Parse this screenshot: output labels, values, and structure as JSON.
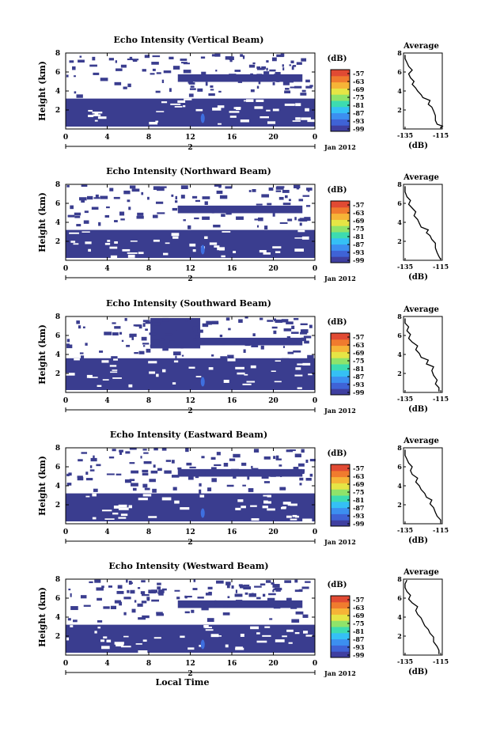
{
  "chart_data": [
    {
      "type": "heatmap",
      "title": "Echo Intensity (Vertical Beam)",
      "ylabel": "Height (km)",
      "yticks": [
        "2",
        "4",
        "6",
        "8"
      ],
      "ylim": [
        0,
        8
      ],
      "xticks": [
        "0",
        "4",
        "8",
        "12",
        "16",
        "20",
        "0"
      ],
      "xlim": [
        0,
        24
      ],
      "date_label": "2",
      "date_suffix": "Jan 2012",
      "colorbar": {
        "unit": "(dB)",
        "ticks": [
          "-57",
          "-63",
          "-69",
          "-75",
          "-81",
          "-87",
          "-93",
          "-99"
        ]
      },
      "average_profile": {
        "title": "Average",
        "xlabel": "(dB)",
        "xticks": [
          "-135",
          "-115"
        ],
        "yticks": [
          "2",
          "4",
          "6",
          "8"
        ],
        "points": [
          [
            -115,
            0.1
          ],
          [
            -114,
            0.3
          ],
          [
            -117,
            0.5
          ],
          [
            -118,
            0.9
          ],
          [
            -118,
            1.4
          ],
          [
            -119,
            1.9
          ],
          [
            -120,
            2.3
          ],
          [
            -122,
            2.6
          ],
          [
            -121,
            3.0
          ],
          [
            -125,
            3.3
          ],
          [
            -126,
            3.6
          ],
          [
            -128,
            4.0
          ],
          [
            -129,
            4.3
          ],
          [
            -131,
            4.7
          ],
          [
            -130,
            5.0
          ],
          [
            -132,
            5.4
          ],
          [
            -133,
            5.8
          ],
          [
            -131,
            6.2
          ],
          [
            -133,
            6.6
          ],
          [
            -134,
            7.0
          ],
          [
            -135,
            7.4
          ],
          [
            -135,
            7.8
          ]
        ]
      }
    },
    {
      "type": "heatmap",
      "title": "Echo Intensity (Northward Beam)",
      "ylabel": "Height (km)",
      "yticks": [
        "2",
        "4",
        "6",
        "8"
      ],
      "ylim": [
        0,
        8
      ],
      "xticks": [
        "0",
        "4",
        "8",
        "12",
        "16",
        "20",
        "0"
      ],
      "xlim": [
        0,
        24
      ],
      "date_label": "2",
      "date_suffix": "Jan 2012",
      "colorbar": {
        "unit": "(dB)",
        "ticks": [
          "-57",
          "-63",
          "-69",
          "-75",
          "-81",
          "-87",
          "-93",
          "-99"
        ]
      },
      "average_profile": {
        "title": "Average",
        "xlabel": "(dB)",
        "xticks": [
          "-135",
          "-115"
        ],
        "yticks": [
          "2",
          "4",
          "6",
          "8"
        ],
        "points": [
          [
            -115,
            0.1
          ],
          [
            -116,
            0.4
          ],
          [
            -117,
            0.8
          ],
          [
            -118,
            1.3
          ],
          [
            -118,
            1.8
          ],
          [
            -120,
            2.2
          ],
          [
            -121,
            2.6
          ],
          [
            -123,
            2.9
          ],
          [
            -122,
            3.2
          ],
          [
            -126,
            3.5
          ],
          [
            -127,
            3.9
          ],
          [
            -128,
            4.3
          ],
          [
            -130,
            4.7
          ],
          [
            -129,
            5.1
          ],
          [
            -131,
            5.5
          ],
          [
            -133,
            5.9
          ],
          [
            -132,
            6.3
          ],
          [
            -134,
            6.7
          ],
          [
            -135,
            7.2
          ],
          [
            -135,
            7.8
          ]
        ]
      }
    },
    {
      "type": "heatmap",
      "title": "Echo Intensity (Southward Beam)",
      "ylabel": "Height (km)",
      "yticks": [
        "2",
        "4",
        "6",
        "8"
      ],
      "ylim": [
        0,
        8
      ],
      "xticks": [
        "0",
        "4",
        "8",
        "12",
        "16",
        "20",
        "0"
      ],
      "xlim": [
        0,
        24
      ],
      "date_label": "2",
      "date_suffix": "Jan 2012",
      "colorbar": {
        "unit": "(dB)",
        "ticks": [
          "-57",
          "-63",
          "-69",
          "-75",
          "-81",
          "-87",
          "-93",
          "-99"
        ]
      },
      "average_profile": {
        "title": "Average",
        "xlabel": "(dB)",
        "xticks": [
          "-135",
          "-115"
        ],
        "yticks": [
          "2",
          "4",
          "6",
          "8"
        ],
        "points": [
          [
            -116,
            0.1
          ],
          [
            -116,
            0.5
          ],
          [
            -118,
            0.9
          ],
          [
            -117,
            1.3
          ],
          [
            -119,
            1.8
          ],
          [
            -120,
            2.3
          ],
          [
            -119,
            2.7
          ],
          [
            -123,
            3.0
          ],
          [
            -122,
            3.4
          ],
          [
            -126,
            3.7
          ],
          [
            -127,
            4.1
          ],
          [
            -129,
            4.5
          ],
          [
            -128,
            4.9
          ],
          [
            -131,
            5.3
          ],
          [
            -133,
            5.7
          ],
          [
            -132,
            6.1
          ],
          [
            -134,
            6.5
          ],
          [
            -133,
            6.9
          ],
          [
            -135,
            7.3
          ],
          [
            -135,
            7.8
          ]
        ]
      }
    },
    {
      "type": "heatmap",
      "title": "Echo Intensity (Eastward Beam)",
      "ylabel": "Height (km)",
      "yticks": [
        "2",
        "4",
        "6",
        "8"
      ],
      "ylim": [
        0,
        8
      ],
      "xticks": [
        "0",
        "4",
        "8",
        "12",
        "16",
        "20",
        "0"
      ],
      "xlim": [
        0,
        24
      ],
      "date_label": "2",
      "date_suffix": "Jan 2012",
      "colorbar": {
        "unit": "(dB)",
        "ticks": [
          "-57",
          "-63",
          "-69",
          "-75",
          "-81",
          "-87",
          "-93",
          "-99"
        ]
      },
      "average_profile": {
        "title": "Average",
        "xlabel": "(dB)",
        "xticks": [
          "-135",
          "-115"
        ],
        "yticks": [
          "2",
          "4",
          "6",
          "8"
        ],
        "points": [
          [
            -115,
            0.1
          ],
          [
            -115,
            0.4
          ],
          [
            -117,
            0.8
          ],
          [
            -118,
            1.2
          ],
          [
            -119,
            1.7
          ],
          [
            -121,
            2.1
          ],
          [
            -120,
            2.5
          ],
          [
            -123,
            2.8
          ],
          [
            -124,
            3.2
          ],
          [
            -126,
            3.6
          ],
          [
            -127,
            4.0
          ],
          [
            -129,
            4.4
          ],
          [
            -128,
            4.8
          ],
          [
            -131,
            5.2
          ],
          [
            -132,
            5.6
          ],
          [
            -131,
            6.0
          ],
          [
            -133,
            6.4
          ],
          [
            -134,
            6.8
          ],
          [
            -135,
            7.2
          ],
          [
            -135,
            7.8
          ]
        ]
      }
    },
    {
      "type": "heatmap",
      "title": "Echo Intensity (Westward Beam)",
      "ylabel": "Height (km)",
      "xlabel": "Local Time",
      "yticks": [
        "2",
        "4",
        "6",
        "8"
      ],
      "ylim": [
        0,
        8
      ],
      "xticks": [
        "0",
        "4",
        "8",
        "12",
        "16",
        "20",
        "0"
      ],
      "xlim": [
        0,
        24
      ],
      "date_label": "2",
      "date_suffix": "Jan 2012",
      "colorbar": {
        "unit": "(dB)",
        "ticks": [
          "-57",
          "-63",
          "-69",
          "-75",
          "-81",
          "-87",
          "-93",
          "-99"
        ]
      },
      "average_profile": {
        "title": "Average",
        "xlabel": "(dB)",
        "xticks": [
          "-135",
          "-115"
        ],
        "yticks": [
          "2",
          "4",
          "6",
          "8"
        ],
        "points": [
          [
            -116,
            0.1
          ],
          [
            -116,
            0.5
          ],
          [
            -117,
            0.9
          ],
          [
            -119,
            1.4
          ],
          [
            -119,
            1.9
          ],
          [
            -121,
            2.3
          ],
          [
            -122,
            2.7
          ],
          [
            -124,
            3.1
          ],
          [
            -125,
            3.5
          ],
          [
            -126,
            3.9
          ],
          [
            -128,
            4.3
          ],
          [
            -129,
            4.7
          ],
          [
            -128,
            5.1
          ],
          [
            -131,
            5.5
          ],
          [
            -133,
            5.9
          ],
          [
            -132,
            6.3
          ],
          [
            -134,
            6.7
          ],
          [
            -135,
            7.1
          ],
          [
            -135,
            7.5
          ],
          [
            -134,
            7.9
          ]
        ]
      }
    }
  ]
}
